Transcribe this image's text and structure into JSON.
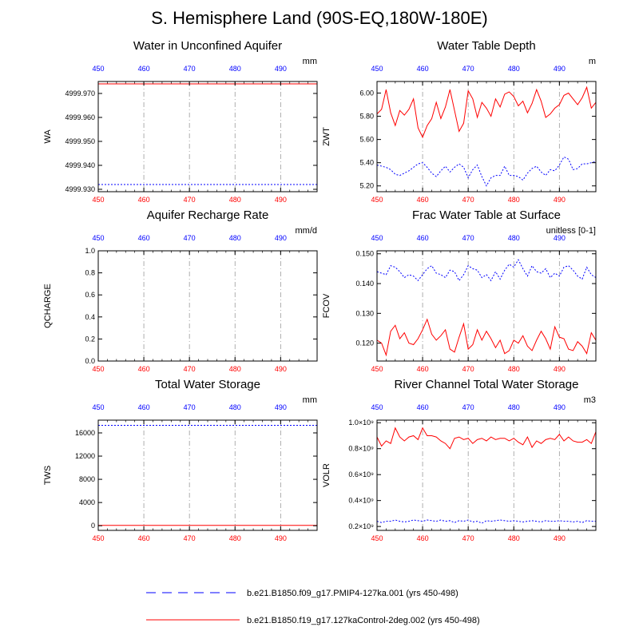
{
  "page_title": "S. Hemisphere Land (90S-EQ,180W-180E)",
  "colors": {
    "series_blue": "#0000ff",
    "series_red": "#ff0000",
    "frame": "#000000",
    "grid": "#999999"
  },
  "chart_data": [
    {
      "id": "wa",
      "type": "line",
      "title": "Water in Unconfined Aquifer",
      "ylabel": "WA",
      "units": "mm",
      "xlim": [
        450,
        498
      ],
      "ylim": [
        4999.929,
        4999.975
      ],
      "xticks": [
        450,
        460,
        470,
        480,
        490
      ],
      "yticks": [
        4999.93,
        4999.94,
        4999.95,
        4999.96,
        4999.97
      ],
      "ytick_labels": [
        "4999.930",
        "4999.940",
        "4999.950",
        "4999.960",
        "4999.970"
      ],
      "series": [
        {
          "name": "b.e21.B1850.f09_g17.PMIP4-127ka.001",
          "color": "blue",
          "style": "dotted",
          "x_start": 450,
          "values": [
            4999.932,
            4999.932
          ]
        },
        {
          "name": "b.e21.B1850.f19_g17.127kaControl-2deg.002",
          "color": "red",
          "style": "solid",
          "x_start": 450,
          "values": [
            4999.974,
            4999.974
          ]
        }
      ]
    },
    {
      "id": "zwt",
      "type": "line",
      "title": "Water Table Depth",
      "ylabel": "ZWT",
      "units": "m",
      "xlim": [
        450,
        498
      ],
      "ylim": [
        5.15,
        6.1
      ],
      "xticks": [
        450,
        460,
        470,
        480,
        490
      ],
      "yticks": [
        5.2,
        5.4,
        5.6,
        5.8,
        6.0
      ],
      "ytick_labels": [
        "5.20",
        "5.40",
        "5.60",
        "5.80",
        "6.00"
      ],
      "series": [
        {
          "name": "b.e21.B1850.f09_g17.PMIP4-127ka.001",
          "color": "blue",
          "style": "dotted",
          "x_start": 450,
          "values": [
            5.38,
            5.37,
            5.36,
            5.34,
            5.3,
            5.29,
            5.31,
            5.33,
            5.36,
            5.39,
            5.4,
            5.36,
            5.31,
            5.28,
            5.33,
            5.37,
            5.32,
            5.36,
            5.39,
            5.36,
            5.27,
            5.34,
            5.38,
            5.28,
            5.2,
            5.27,
            5.29,
            5.29,
            5.37,
            5.29,
            5.29,
            5.28,
            5.25,
            5.31,
            5.35,
            5.37,
            5.32,
            5.29,
            5.34,
            5.33,
            5.38,
            5.45,
            5.43,
            5.34,
            5.35,
            5.39,
            5.39,
            5.4,
            5.41
          ]
        },
        {
          "name": "b.e21.B1850.f19_g17.127kaControl-2deg.002",
          "color": "red",
          "style": "solid",
          "x_start": 450,
          "values": [
            5.82,
            5.86,
            6.03,
            5.83,
            5.72,
            5.85,
            5.81,
            5.86,
            5.95,
            5.7,
            5.62,
            5.72,
            5.78,
            5.92,
            5.78,
            5.88,
            6.03,
            5.85,
            5.67,
            5.74,
            6.02,
            5.95,
            5.79,
            5.92,
            5.87,
            5.8,
            5.95,
            5.88,
            5.99,
            6.01,
            5.97,
            5.89,
            5.93,
            5.83,
            5.91,
            6.03,
            5.93,
            5.79,
            5.82,
            5.87,
            5.9,
            5.98,
            6.0,
            5.95,
            5.9,
            5.96,
            6.05,
            5.87,
            5.92
          ]
        }
      ]
    },
    {
      "id": "qcharge",
      "type": "line",
      "title": "Aquifer Recharge Rate",
      "ylabel": "QCHARGE",
      "units": "mm/d",
      "xlim": [
        450,
        498
      ],
      "ylim": [
        0,
        1.0
      ],
      "xticks": [
        450,
        460,
        470,
        480,
        490
      ],
      "yticks": [
        0.0,
        0.2,
        0.4,
        0.6,
        0.8,
        1.0
      ],
      "ytick_labels": [
        "0.0",
        "0.2",
        "0.4",
        "0.6",
        "0.8",
        "1.0"
      ],
      "series": [
        {
          "name": "b.e21.B1850.f09_g17.PMIP4-127ka.001",
          "color": "blue",
          "style": "dotted",
          "x_start": 450,
          "values": [
            0.0,
            0.0
          ]
        },
        {
          "name": "b.e21.B1850.f19_g17.127kaControl-2deg.002",
          "color": "red",
          "style": "solid",
          "x_start": 450,
          "values": [
            0.0,
            0.0
          ]
        }
      ]
    },
    {
      "id": "fcov",
      "type": "line",
      "title": "Frac Water Table at Surface",
      "ylabel": "FCOV",
      "units": "unitless [0-1]",
      "xlim": [
        450,
        498
      ],
      "ylim": [
        0.114,
        0.151
      ],
      "xticks": [
        450,
        460,
        470,
        480,
        490
      ],
      "yticks": [
        0.12,
        0.13,
        0.14,
        0.15
      ],
      "ytick_labels": [
        "0.120",
        "0.130",
        "0.140",
        "0.150"
      ],
      "series": [
        {
          "name": "b.e21.B1850.f09_g17.PMIP4-127ka.001",
          "color": "blue",
          "style": "dotted",
          "x_start": 450,
          "values": [
            0.144,
            0.1435,
            0.143,
            0.146,
            0.1455,
            0.144,
            0.142,
            0.143,
            0.1425,
            0.141,
            0.143,
            0.145,
            0.146,
            0.1435,
            0.143,
            0.142,
            0.1445,
            0.144,
            0.141,
            0.143,
            0.146,
            0.145,
            0.1445,
            0.142,
            0.143,
            0.141,
            0.144,
            0.1415,
            0.1445,
            0.1465,
            0.1455,
            0.148,
            0.145,
            0.1425,
            0.146,
            0.144,
            0.1435,
            0.145,
            0.142,
            0.1435,
            0.1425,
            0.1455,
            0.146,
            0.1445,
            0.1425,
            0.1415,
            0.1455,
            0.143,
            0.142
          ]
        },
        {
          "name": "b.e21.B1850.f19_g17.127kaControl-2deg.002",
          "color": "red",
          "style": "solid",
          "x_start": 450,
          "values": [
            0.121,
            0.12,
            0.116,
            0.124,
            0.126,
            0.1215,
            0.1235,
            0.12,
            0.1195,
            0.1215,
            0.1245,
            0.128,
            0.123,
            0.121,
            0.1225,
            0.1245,
            0.118,
            0.117,
            0.122,
            0.1265,
            0.118,
            0.1195,
            0.1245,
            0.121,
            0.124,
            0.1215,
            0.1185,
            0.121,
            0.1165,
            0.1175,
            0.121,
            0.12,
            0.1225,
            0.119,
            0.1175,
            0.121,
            0.124,
            0.1215,
            0.118,
            0.1255,
            0.122,
            0.1215,
            0.118,
            0.1175,
            0.1205,
            0.119,
            0.1165,
            0.1235,
            0.121
          ]
        }
      ]
    },
    {
      "id": "tws",
      "type": "line",
      "title": "Total Water Storage",
      "ylabel": "TWS",
      "units": "mm",
      "xlim": [
        450,
        498
      ],
      "ylim": [
        -800,
        18200
      ],
      "xticks": [
        450,
        460,
        470,
        480,
        490
      ],
      "yticks": [
        0,
        4000,
        8000,
        12000,
        16000
      ],
      "ytick_labels": [
        "0",
        "4000",
        "8000",
        "12000",
        "16000"
      ],
      "series": [
        {
          "name": "b.e21.B1850.f09_g17.PMIP4-127ka.001",
          "color": "blue",
          "style": "dotted",
          "x_start": 450,
          "values": [
            17300,
            17300
          ]
        },
        {
          "name": "b.e21.B1850.f19_g17.127kaControl-2deg.002",
          "color": "red",
          "style": "solid",
          "x_start": 450,
          "values": [
            60,
            60
          ]
        }
      ]
    },
    {
      "id": "volr",
      "type": "line",
      "title": "River Channel Total Water Storage",
      "ylabel": "VOLR",
      "units": "m3",
      "xlim": [
        450,
        498
      ],
      "ylim": [
        170000000.0,
        1020000000.0
      ],
      "xticks": [
        450,
        460,
        470,
        480,
        490
      ],
      "yticks": [
        200000000.0,
        400000000.0,
        600000000.0,
        800000000.0,
        1000000000.0
      ],
      "ytick_labels": [
        "0.2×10⁹",
        "0.4×10⁹",
        "0.6×10⁹",
        "0.8×10⁹",
        "1.0×10⁹"
      ],
      "series": [
        {
          "name": "b.e21.B1850.f09_g17.PMIP4-127ka.001",
          "color": "blue",
          "style": "dotted",
          "x_start": 450,
          "values": [
            240000000.0,
            230000000.0,
            240000000.0,
            240000000.0,
            250000000.0,
            240000000.0,
            235000000.0,
            240000000.0,
            250000000.0,
            245000000.0,
            240000000.0,
            250000000.0,
            245000000.0,
            240000000.0,
            250000000.0,
            240000000.0,
            245000000.0,
            230000000.0,
            245000000.0,
            240000000.0,
            250000000.0,
            235000000.0,
            240000000.0,
            225000000.0,
            245000000.0,
            240000000.0,
            245000000.0,
            250000000.0,
            245000000.0,
            240000000.0,
            245000000.0,
            240000000.0,
            235000000.0,
            240000000.0,
            245000000.0,
            240000000.0,
            235000000.0,
            245000000.0,
            240000000.0,
            240000000.0,
            245000000.0,
            240000000.0,
            240000000.0,
            235000000.0,
            240000000.0,
            230000000.0,
            245000000.0,
            240000000.0,
            240000000.0
          ]
        },
        {
          "name": "b.e21.B1850.f19_g17.127kaControl-2deg.002",
          "color": "red",
          "style": "solid",
          "x_start": 450,
          "values": [
            890000000.0,
            820000000.0,
            860000000.0,
            840000000.0,
            960000000.0,
            890000000.0,
            860000000.0,
            890000000.0,
            900000000.0,
            870000000.0,
            960000000.0,
            900000000.0,
            900000000.0,
            890000000.0,
            860000000.0,
            840000000.0,
            800000000.0,
            880000000.0,
            890000000.0,
            870000000.0,
            880000000.0,
            840000000.0,
            870000000.0,
            880000000.0,
            860000000.0,
            890000000.0,
            870000000.0,
            880000000.0,
            880000000.0,
            860000000.0,
            880000000.0,
            850000000.0,
            830000000.0,
            890000000.0,
            810000000.0,
            860000000.0,
            840000000.0,
            870000000.0,
            880000000.0,
            870000000.0,
            910000000.0,
            860000000.0,
            890000000.0,
            860000000.0,
            850000000.0,
            850000000.0,
            870000000.0,
            840000000.0,
            930000000.0
          ]
        }
      ]
    }
  ],
  "legend": [
    {
      "color": "blue",
      "style": "dashed",
      "label": "b.e21.B1850.f09_g17.PMIP4-127ka.001 (yrs 450-498)"
    },
    {
      "color": "red",
      "style": "solid",
      "label": "b.e21.B1850.f19_g17.127kaControl-2deg.002 (yrs 450-498)"
    }
  ]
}
